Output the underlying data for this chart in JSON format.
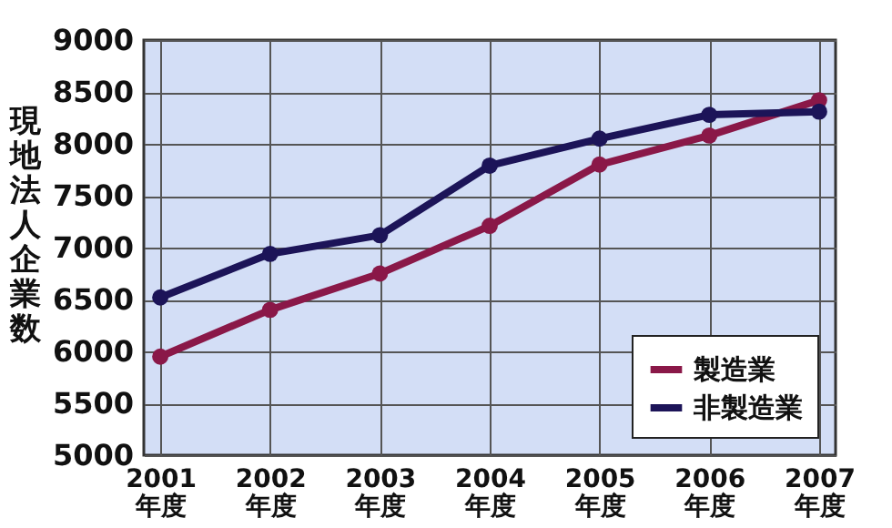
{
  "chart_data": {
    "type": "line",
    "ylabel": "現地法人企業数",
    "categories": [
      "2001\n年度",
      "2002\n年度",
      "2003\n年度",
      "2004\n年度",
      "2005\n年度",
      "2006\n年度",
      "2007\n年度"
    ],
    "series": [
      {
        "name": "製造業",
        "color": "#8a1848",
        "values": [
          5950,
          6400,
          6750,
          7210,
          7800,
          8080,
          8420
        ]
      },
      {
        "name": "非製造業",
        "color": "#1c1458",
        "values": [
          6520,
          6940,
          7120,
          7790,
          8050,
          8280,
          8310
        ]
      }
    ],
    "ylim": [
      5000,
      9000
    ],
    "yticks": [
      5000,
      5500,
      6000,
      6500,
      7000,
      7500,
      8000,
      8500,
      9000
    ],
    "grid": true,
    "legend": "bottom right",
    "marker": "circle"
  }
}
